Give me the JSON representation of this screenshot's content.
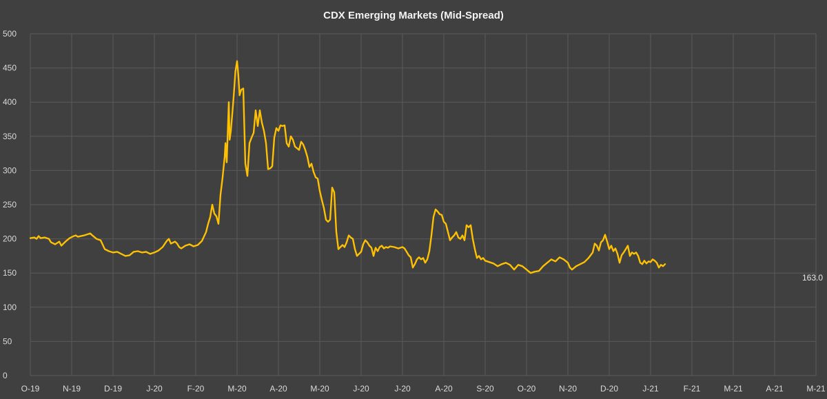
{
  "chart_data": {
    "type": "line",
    "title": "CDX Emerging Markets (Mid-Spread)",
    "xlabel": "",
    "ylabel": "",
    "ylim": [
      0,
      500
    ],
    "y_ticks": [
      0,
      50,
      100,
      150,
      200,
      250,
      300,
      350,
      400,
      450,
      500
    ],
    "x_ticks": [
      "O-19",
      "N-19",
      "D-19",
      "J-20",
      "F-20",
      "M-20",
      "A-20",
      "M-20",
      "J-20",
      "J-20",
      "A-20",
      "S-20",
      "O-20",
      "N-20",
      "D-20",
      "J-21",
      "F-21",
      "M-21",
      "A-21",
      "M-21"
    ],
    "grid": true,
    "legend": "none",
    "last_value_label": "163.0",
    "series": [
      {
        "color": "#ffc000",
        "points": [
          [
            0.0,
            201
          ],
          [
            0.1,
            202
          ],
          [
            0.15,
            200
          ],
          [
            0.2,
            204
          ],
          [
            0.25,
            201
          ],
          [
            0.35,
            202
          ],
          [
            0.45,
            200
          ],
          [
            0.5,
            195
          ],
          [
            0.6,
            192
          ],
          [
            0.7,
            196
          ],
          [
            0.75,
            190
          ],
          [
            0.85,
            196
          ],
          [
            0.95,
            201
          ],
          [
            1.05,
            204
          ],
          [
            1.1,
            205
          ],
          [
            1.15,
            203
          ],
          [
            1.3,
            205
          ],
          [
            1.45,
            208
          ],
          [
            1.5,
            205
          ],
          [
            1.6,
            200
          ],
          [
            1.7,
            198
          ],
          [
            1.8,
            185
          ],
          [
            1.9,
            182
          ],
          [
            2.0,
            180
          ],
          [
            2.1,
            181
          ],
          [
            2.2,
            178
          ],
          [
            2.3,
            175
          ],
          [
            2.4,
            176
          ],
          [
            2.5,
            181
          ],
          [
            2.6,
            182
          ],
          [
            2.7,
            180
          ],
          [
            2.8,
            181
          ],
          [
            2.9,
            178
          ],
          [
            3.0,
            180
          ],
          [
            3.1,
            183
          ],
          [
            3.2,
            188
          ],
          [
            3.3,
            197
          ],
          [
            3.35,
            200
          ],
          [
            3.4,
            193
          ],
          [
            3.5,
            196
          ],
          [
            3.55,
            193
          ],
          [
            3.6,
            188
          ],
          [
            3.65,
            186
          ],
          [
            3.75,
            190
          ],
          [
            3.85,
            192
          ],
          [
            3.95,
            189
          ],
          [
            4.05,
            191
          ],
          [
            4.15,
            197
          ],
          [
            4.25,
            210
          ],
          [
            4.3,
            222
          ],
          [
            4.35,
            232
          ],
          [
            4.4,
            250
          ],
          [
            4.45,
            237
          ],
          [
            4.5,
            233
          ],
          [
            4.55,
            222
          ],
          [
            4.6,
            265
          ],
          [
            4.65,
            290
          ],
          [
            4.7,
            320
          ],
          [
            4.72,
            340
          ],
          [
            4.75,
            312
          ],
          [
            4.78,
            365
          ],
          [
            4.8,
            400
          ],
          [
            4.82,
            345
          ],
          [
            4.85,
            358
          ],
          [
            4.88,
            380
          ],
          [
            4.92,
            410
          ],
          [
            4.96,
            445
          ],
          [
            5.0,
            460
          ],
          [
            5.03,
            440
          ],
          [
            5.06,
            410
          ],
          [
            5.1,
            418
          ],
          [
            5.15,
            420
          ],
          [
            5.2,
            310
          ],
          [
            5.25,
            292
          ],
          [
            5.3,
            340
          ],
          [
            5.35,
            348
          ],
          [
            5.4,
            355
          ],
          [
            5.45,
            388
          ],
          [
            5.5,
            365
          ],
          [
            5.55,
            388
          ],
          [
            5.6,
            370
          ],
          [
            5.65,
            358
          ],
          [
            5.7,
            340
          ],
          [
            5.75,
            302
          ],
          [
            5.8,
            303
          ],
          [
            5.85,
            306
          ],
          [
            5.9,
            348
          ],
          [
            5.95,
            362
          ],
          [
            6.0,
            358
          ],
          [
            6.05,
            366
          ],
          [
            6.1,
            365
          ],
          [
            6.15,
            366
          ],
          [
            6.2,
            340
          ],
          [
            6.25,
            335
          ],
          [
            6.3,
            350
          ],
          [
            6.35,
            345
          ],
          [
            6.4,
            335
          ],
          [
            6.5,
            330
          ],
          [
            6.55,
            342
          ],
          [
            6.6,
            338
          ],
          [
            6.65,
            330
          ],
          [
            6.7,
            320
          ],
          [
            6.75,
            305
          ],
          [
            6.8,
            310
          ],
          [
            6.85,
            298
          ],
          [
            6.9,
            290
          ],
          [
            6.95,
            288
          ],
          [
            7.0,
            270
          ],
          [
            7.05,
            257
          ],
          [
            7.1,
            245
          ],
          [
            7.15,
            228
          ],
          [
            7.2,
            225
          ],
          [
            7.25,
            228
          ],
          [
            7.3,
            275
          ],
          [
            7.35,
            268
          ],
          [
            7.4,
            210
          ],
          [
            7.45,
            185
          ],
          [
            7.5,
            188
          ],
          [
            7.55,
            191
          ],
          [
            7.6,
            188
          ],
          [
            7.65,
            195
          ],
          [
            7.7,
            205
          ],
          [
            7.75,
            202
          ],
          [
            7.8,
            200
          ],
          [
            7.85,
            185
          ],
          [
            7.9,
            175
          ],
          [
            7.95,
            178
          ],
          [
            8.0,
            181
          ],
          [
            8.05,
            192
          ],
          [
            8.1,
            198
          ],
          [
            8.15,
            195
          ],
          [
            8.2,
            190
          ],
          [
            8.25,
            187
          ],
          [
            8.3,
            175
          ],
          [
            8.35,
            187
          ],
          [
            8.4,
            182
          ],
          [
            8.45,
            188
          ],
          [
            8.5,
            190
          ],
          [
            8.55,
            186
          ],
          [
            8.6,
            188
          ],
          [
            8.65,
            187
          ],
          [
            8.7,
            189
          ],
          [
            8.8,
            188
          ],
          [
            8.9,
            186
          ],
          [
            9.0,
            188
          ],
          [
            9.05,
            186
          ],
          [
            9.1,
            181
          ],
          [
            9.15,
            176
          ],
          [
            9.2,
            173
          ],
          [
            9.25,
            158
          ],
          [
            9.3,
            163
          ],
          [
            9.35,
            170
          ],
          [
            9.4,
            173
          ],
          [
            9.45,
            170
          ],
          [
            9.5,
            172
          ],
          [
            9.55,
            165
          ],
          [
            9.6,
            170
          ],
          [
            9.65,
            182
          ],
          [
            9.7,
            205
          ],
          [
            9.75,
            232
          ],
          [
            9.8,
            243
          ],
          [
            9.85,
            240
          ],
          [
            9.9,
            236
          ],
          [
            9.95,
            235
          ],
          [
            10.0,
            225
          ],
          [
            10.05,
            222
          ],
          [
            10.1,
            210
          ],
          [
            10.15,
            198
          ],
          [
            10.2,
            202
          ],
          [
            10.25,
            205
          ],
          [
            10.3,
            210
          ],
          [
            10.35,
            202
          ],
          [
            10.4,
            200
          ],
          [
            10.45,
            205
          ],
          [
            10.5,
            198
          ],
          [
            10.55,
            220
          ],
          [
            10.6,
            217
          ],
          [
            10.65,
            220
          ],
          [
            10.7,
            200
          ],
          [
            10.75,
            185
          ],
          [
            10.8,
            172
          ],
          [
            10.85,
            175
          ],
          [
            10.9,
            170
          ],
          [
            10.95,
            172
          ],
          [
            11.0,
            168
          ],
          [
            11.1,
            166
          ],
          [
            11.2,
            164
          ],
          [
            11.3,
            160
          ],
          [
            11.4,
            163
          ],
          [
            11.5,
            165
          ],
          [
            11.6,
            162
          ],
          [
            11.7,
            155
          ],
          [
            11.8,
            162
          ],
          [
            11.9,
            160
          ],
          [
            12.0,
            155
          ],
          [
            12.1,
            150
          ],
          [
            12.2,
            152
          ],
          [
            12.3,
            153
          ],
          [
            12.4,
            160
          ],
          [
            12.5,
            165
          ],
          [
            12.6,
            170
          ],
          [
            12.7,
            167
          ],
          [
            12.8,
            173
          ],
          [
            12.9,
            170
          ],
          [
            13.0,
            165
          ],
          [
            13.05,
            158
          ],
          [
            13.1,
            155
          ],
          [
            13.2,
            160
          ],
          [
            13.3,
            163
          ],
          [
            13.4,
            166
          ],
          [
            13.5,
            172
          ],
          [
            13.6,
            180
          ],
          [
            13.65,
            193
          ],
          [
            13.7,
            190
          ],
          [
            13.75,
            183
          ],
          [
            13.8,
            195
          ],
          [
            13.85,
            198
          ],
          [
            13.9,
            206
          ],
          [
            13.95,
            196
          ],
          [
            14.0,
            185
          ],
          [
            14.05,
            190
          ],
          [
            14.1,
            182
          ],
          [
            14.15,
            186
          ],
          [
            14.2,
            178
          ],
          [
            14.25,
            165
          ],
          [
            14.3,
            176
          ],
          [
            14.35,
            180
          ],
          [
            14.4,
            185
          ],
          [
            14.45,
            190
          ],
          [
            14.5,
            175
          ],
          [
            14.55,
            180
          ],
          [
            14.6,
            178
          ],
          [
            14.65,
            180
          ],
          [
            14.7,
            175
          ],
          [
            14.75,
            165
          ],
          [
            14.8,
            163
          ],
          [
            14.85,
            168
          ],
          [
            14.9,
            164
          ],
          [
            14.95,
            167
          ],
          [
            15.0,
            166
          ],
          [
            15.05,
            170
          ],
          [
            15.1,
            168
          ],
          [
            15.15,
            165
          ],
          [
            15.2,
            158
          ],
          [
            15.25,
            162
          ],
          [
            15.3,
            160
          ],
          [
            15.35,
            163
          ]
        ]
      }
    ]
  }
}
